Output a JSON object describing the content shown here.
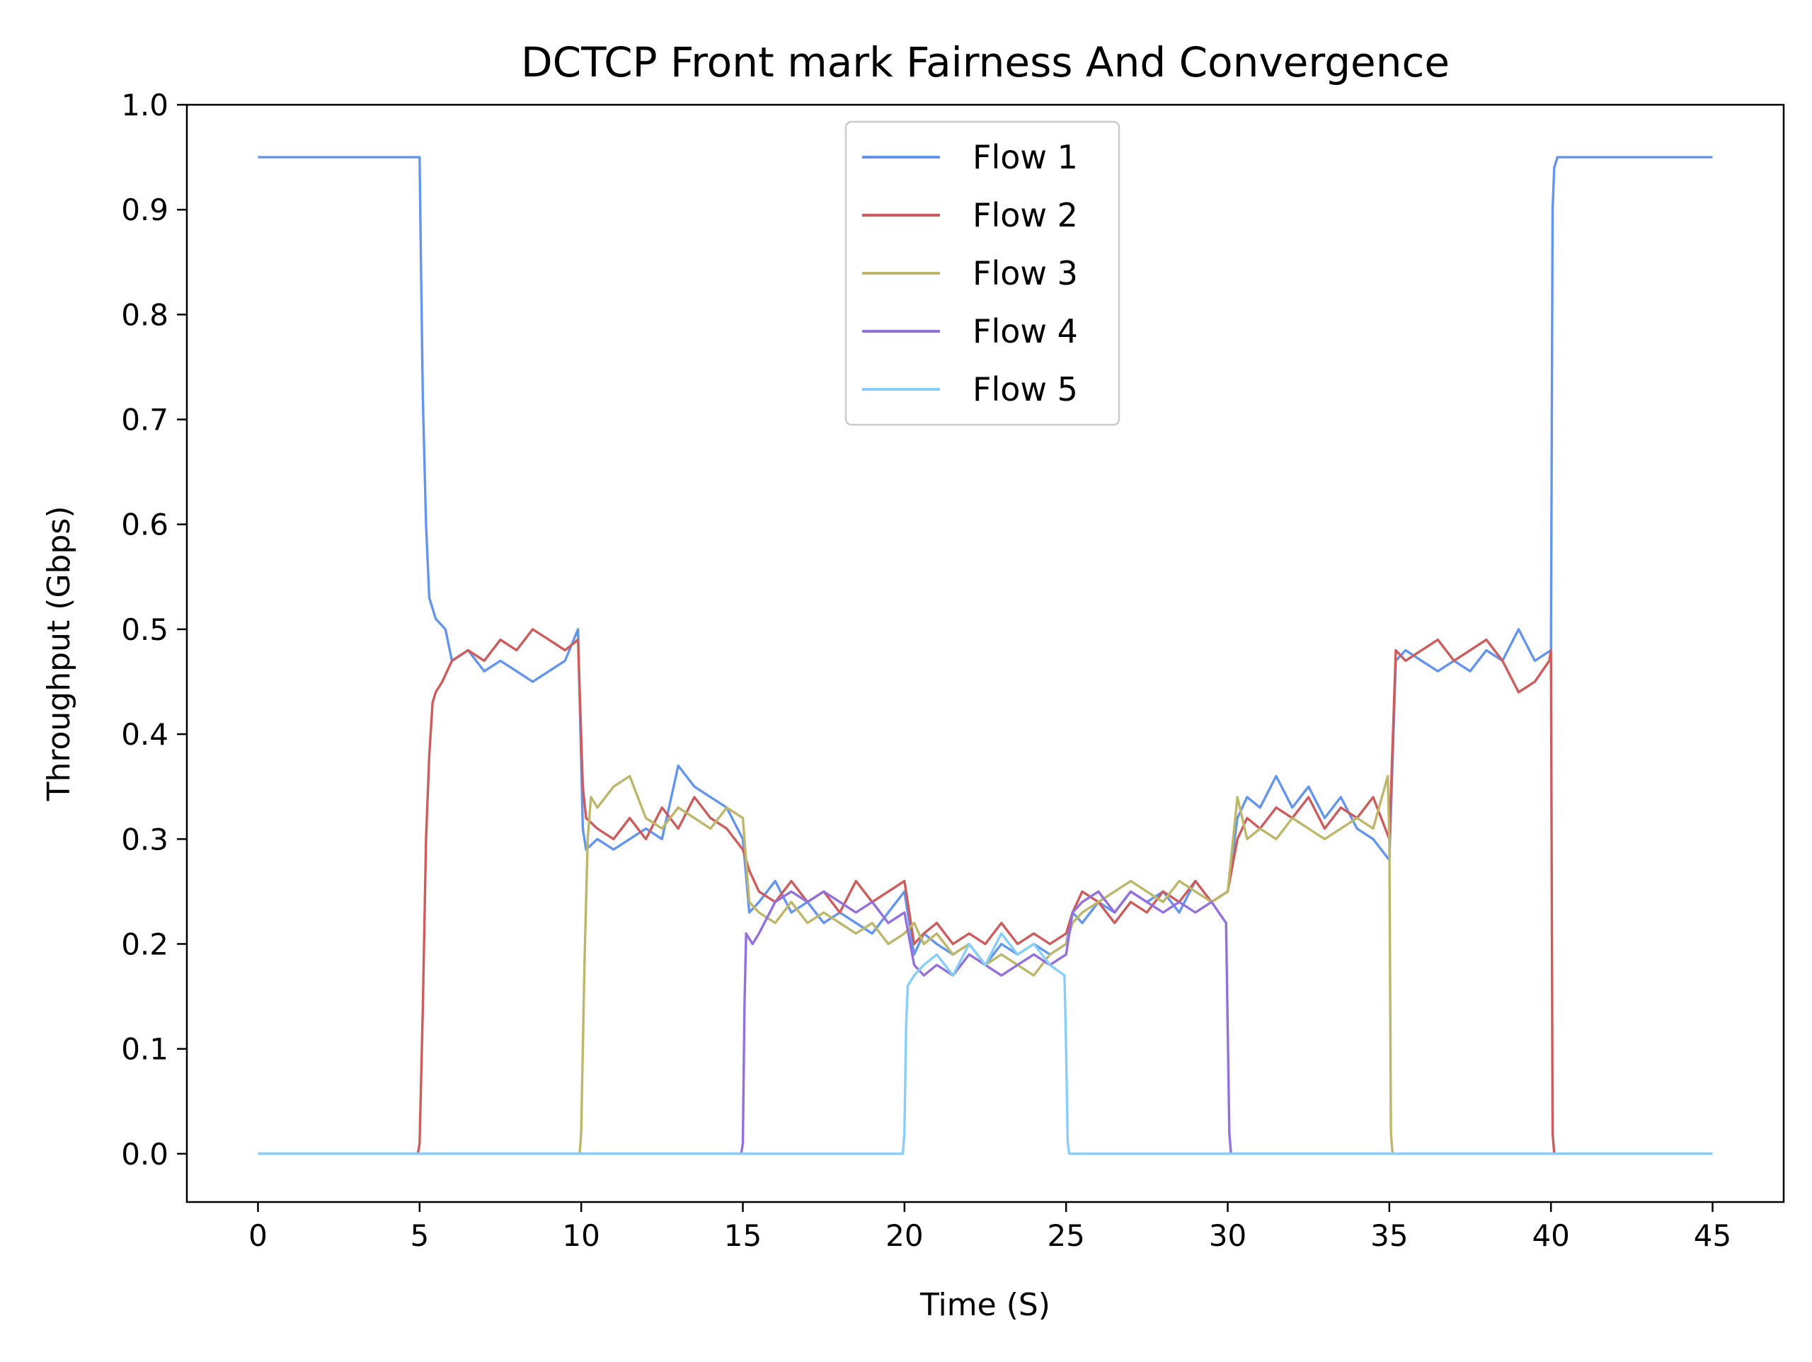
{
  "chart_data": {
    "type": "line",
    "title": "DCTCP Front mark Fairness And Convergence",
    "xlabel": "Time (S)",
    "ylabel": "Throughput (Gbps)",
    "xlim": [
      -2.2,
      47.2
    ],
    "ylim": [
      -0.046,
      1.0
    ],
    "xticks": [
      0,
      5,
      10,
      15,
      20,
      25,
      30,
      35,
      40,
      45
    ],
    "xtick_labels": [
      "0",
      "5",
      "10",
      "15",
      "20",
      "25",
      "30",
      "35",
      "40",
      "45"
    ],
    "yticks": [
      0.0,
      0.1,
      0.2,
      0.3,
      0.4,
      0.5,
      0.6,
      0.7,
      0.8,
      0.9,
      1.0
    ],
    "ytick_labels": [
      "0.0",
      "0.1",
      "0.2",
      "0.3",
      "0.4",
      "0.5",
      "0.6",
      "0.7",
      "0.8",
      "0.9",
      "1.0"
    ],
    "grid": false,
    "legend_position": "top-center",
    "series": [
      {
        "name": "Flow 1",
        "color": "#6495ED",
        "x": [
          0,
          5.0,
          5.05,
          5.1,
          5.2,
          5.3,
          5.5,
          5.8,
          6.0,
          6.5,
          7.0,
          7.5,
          8.0,
          8.5,
          9.0,
          9.5,
          9.9,
          10.05,
          10.15,
          10.5,
          11.0,
          11.5,
          12.0,
          12.5,
          13.0,
          13.5,
          14.0,
          14.5,
          15.0,
          15.2,
          15.5,
          16.0,
          16.5,
          17.0,
          17.5,
          18.0,
          18.5,
          19.0,
          19.5,
          20.0,
          20.3,
          20.6,
          21.0,
          21.5,
          22.0,
          22.5,
          23.0,
          23.5,
          24.0,
          24.5,
          25.0,
          25.2,
          25.5,
          26.0,
          26.5,
          27.0,
          27.5,
          28.0,
          28.5,
          29.0,
          29.5,
          30.0,
          30.3,
          30.6,
          31.0,
          31.5,
          32.0,
          32.5,
          33.0,
          33.5,
          34.0,
          34.5,
          35.0,
          35.2,
          35.5,
          36.0,
          36.5,
          37.0,
          37.5,
          38.0,
          38.5,
          39.0,
          39.5,
          40.0,
          40.05,
          40.1,
          40.2,
          45
        ],
        "values": [
          0.95,
          0.95,
          0.83,
          0.72,
          0.6,
          0.53,
          0.51,
          0.5,
          0.47,
          0.48,
          0.46,
          0.47,
          0.46,
          0.45,
          0.46,
          0.47,
          0.5,
          0.31,
          0.29,
          0.3,
          0.29,
          0.3,
          0.31,
          0.3,
          0.37,
          0.35,
          0.34,
          0.33,
          0.3,
          0.23,
          0.24,
          0.26,
          0.23,
          0.24,
          0.22,
          0.23,
          0.22,
          0.21,
          0.23,
          0.25,
          0.19,
          0.21,
          0.2,
          0.19,
          0.2,
          0.18,
          0.2,
          0.19,
          0.2,
          0.19,
          0.2,
          0.23,
          0.22,
          0.24,
          0.23,
          0.25,
          0.24,
          0.25,
          0.23,
          0.26,
          0.24,
          0.25,
          0.32,
          0.34,
          0.33,
          0.36,
          0.33,
          0.35,
          0.32,
          0.34,
          0.31,
          0.3,
          0.28,
          0.47,
          0.48,
          0.47,
          0.46,
          0.47,
          0.46,
          0.48,
          0.47,
          0.5,
          0.47,
          0.48,
          0.9,
          0.94,
          0.95,
          0.95
        ]
      },
      {
        "name": "Flow 2",
        "color": "#CD5C5C",
        "x": [
          0,
          4.95,
          5.0,
          5.1,
          5.2,
          5.3,
          5.4,
          5.5,
          5.7,
          6.0,
          6.5,
          7.0,
          7.5,
          8.0,
          8.5,
          9.0,
          9.5,
          9.9,
          10.05,
          10.15,
          10.5,
          11.0,
          11.5,
          12.0,
          12.5,
          13.0,
          13.5,
          14.0,
          14.5,
          15.0,
          15.2,
          15.5,
          16.0,
          16.5,
          17.0,
          17.5,
          18.0,
          18.5,
          19.0,
          19.5,
          20.0,
          20.3,
          20.6,
          21.0,
          21.5,
          22.0,
          22.5,
          23.0,
          23.5,
          24.0,
          24.5,
          25.0,
          25.2,
          25.5,
          26.0,
          26.5,
          27.0,
          27.5,
          28.0,
          28.5,
          29.0,
          29.5,
          30.0,
          30.3,
          30.6,
          31.0,
          31.5,
          32.0,
          32.5,
          33.0,
          33.5,
          34.0,
          34.5,
          35.0,
          35.2,
          35.5,
          36.0,
          36.5,
          37.0,
          37.5,
          38.0,
          38.5,
          39.0,
          39.5,
          39.95,
          40.0,
          40.05,
          40.1,
          45
        ],
        "values": [
          0,
          0,
          0.01,
          0.14,
          0.3,
          0.38,
          0.43,
          0.44,
          0.45,
          0.47,
          0.48,
          0.47,
          0.49,
          0.48,
          0.5,
          0.49,
          0.48,
          0.49,
          0.35,
          0.32,
          0.31,
          0.3,
          0.32,
          0.3,
          0.33,
          0.31,
          0.34,
          0.32,
          0.31,
          0.29,
          0.27,
          0.25,
          0.24,
          0.26,
          0.24,
          0.25,
          0.23,
          0.26,
          0.24,
          0.25,
          0.26,
          0.2,
          0.21,
          0.22,
          0.2,
          0.21,
          0.2,
          0.22,
          0.2,
          0.21,
          0.2,
          0.21,
          0.23,
          0.25,
          0.24,
          0.22,
          0.24,
          0.23,
          0.25,
          0.24,
          0.26,
          0.24,
          0.25,
          0.3,
          0.32,
          0.31,
          0.33,
          0.32,
          0.34,
          0.31,
          0.33,
          0.32,
          0.34,
          0.3,
          0.48,
          0.47,
          0.48,
          0.49,
          0.47,
          0.48,
          0.49,
          0.47,
          0.44,
          0.45,
          0.47,
          0.48,
          0.02,
          0.0,
          0
        ]
      },
      {
        "name": "Flow 3",
        "color": "#BDB76B",
        "x": [
          0,
          9.95,
          10.0,
          10.1,
          10.2,
          10.3,
          10.5,
          11.0,
          11.5,
          12.0,
          12.5,
          13.0,
          13.5,
          14.0,
          14.5,
          15.0,
          15.2,
          15.5,
          16.0,
          16.5,
          17.0,
          17.5,
          18.0,
          18.5,
          19.0,
          19.5,
          20.0,
          20.3,
          20.6,
          21.0,
          21.5,
          22.0,
          22.5,
          23.0,
          23.5,
          24.0,
          24.5,
          25.0,
          25.2,
          25.5,
          26.0,
          26.5,
          27.0,
          27.5,
          28.0,
          28.5,
          29.0,
          29.5,
          30.0,
          30.3,
          30.6,
          31.0,
          31.5,
          32.0,
          32.5,
          33.0,
          33.5,
          34.0,
          34.5,
          34.95,
          35.0,
          35.05,
          35.1,
          45
        ],
        "values": [
          0,
          0,
          0.02,
          0.18,
          0.3,
          0.34,
          0.33,
          0.35,
          0.36,
          0.32,
          0.31,
          0.33,
          0.32,
          0.31,
          0.33,
          0.32,
          0.24,
          0.23,
          0.22,
          0.24,
          0.22,
          0.23,
          0.22,
          0.21,
          0.22,
          0.2,
          0.21,
          0.22,
          0.2,
          0.21,
          0.19,
          0.2,
          0.18,
          0.19,
          0.18,
          0.17,
          0.19,
          0.2,
          0.22,
          0.23,
          0.24,
          0.25,
          0.26,
          0.25,
          0.24,
          0.26,
          0.25,
          0.24,
          0.25,
          0.34,
          0.3,
          0.31,
          0.3,
          0.32,
          0.31,
          0.3,
          0.31,
          0.32,
          0.31,
          0.36,
          0.3,
          0.02,
          0.0,
          0
        ]
      },
      {
        "name": "Flow 4",
        "color": "#9370DB",
        "x": [
          0,
          14.95,
          15.0,
          15.05,
          15.1,
          15.3,
          15.5,
          16.0,
          16.5,
          17.0,
          17.5,
          18.0,
          18.5,
          19.0,
          19.5,
          20.0,
          20.3,
          20.6,
          21.0,
          21.5,
          22.0,
          22.5,
          23.0,
          23.5,
          24.0,
          24.5,
          25.0,
          25.2,
          25.5,
          26.0,
          26.5,
          27.0,
          27.5,
          28.0,
          28.5,
          29.0,
          29.5,
          29.95,
          30.0,
          30.05,
          30.1,
          45
        ],
        "values": [
          0,
          0,
          0.01,
          0.14,
          0.21,
          0.2,
          0.21,
          0.24,
          0.25,
          0.24,
          0.25,
          0.24,
          0.23,
          0.24,
          0.22,
          0.23,
          0.18,
          0.17,
          0.18,
          0.17,
          0.19,
          0.18,
          0.17,
          0.18,
          0.19,
          0.18,
          0.19,
          0.23,
          0.24,
          0.25,
          0.23,
          0.25,
          0.24,
          0.23,
          0.24,
          0.23,
          0.24,
          0.22,
          0.12,
          0.02,
          0.0,
          0
        ]
      },
      {
        "name": "Flow 5",
        "color": "#87CEFA",
        "x": [
          0,
          19.95,
          20.0,
          20.05,
          20.1,
          20.3,
          20.6,
          21.0,
          21.5,
          22.0,
          22.5,
          23.0,
          23.5,
          24.0,
          24.5,
          24.95,
          25.0,
          25.05,
          25.1,
          45
        ],
        "values": [
          0,
          0,
          0.02,
          0.12,
          0.16,
          0.17,
          0.18,
          0.19,
          0.17,
          0.2,
          0.18,
          0.21,
          0.19,
          0.2,
          0.18,
          0.17,
          0.1,
          0.01,
          0.0,
          0
        ]
      }
    ]
  }
}
